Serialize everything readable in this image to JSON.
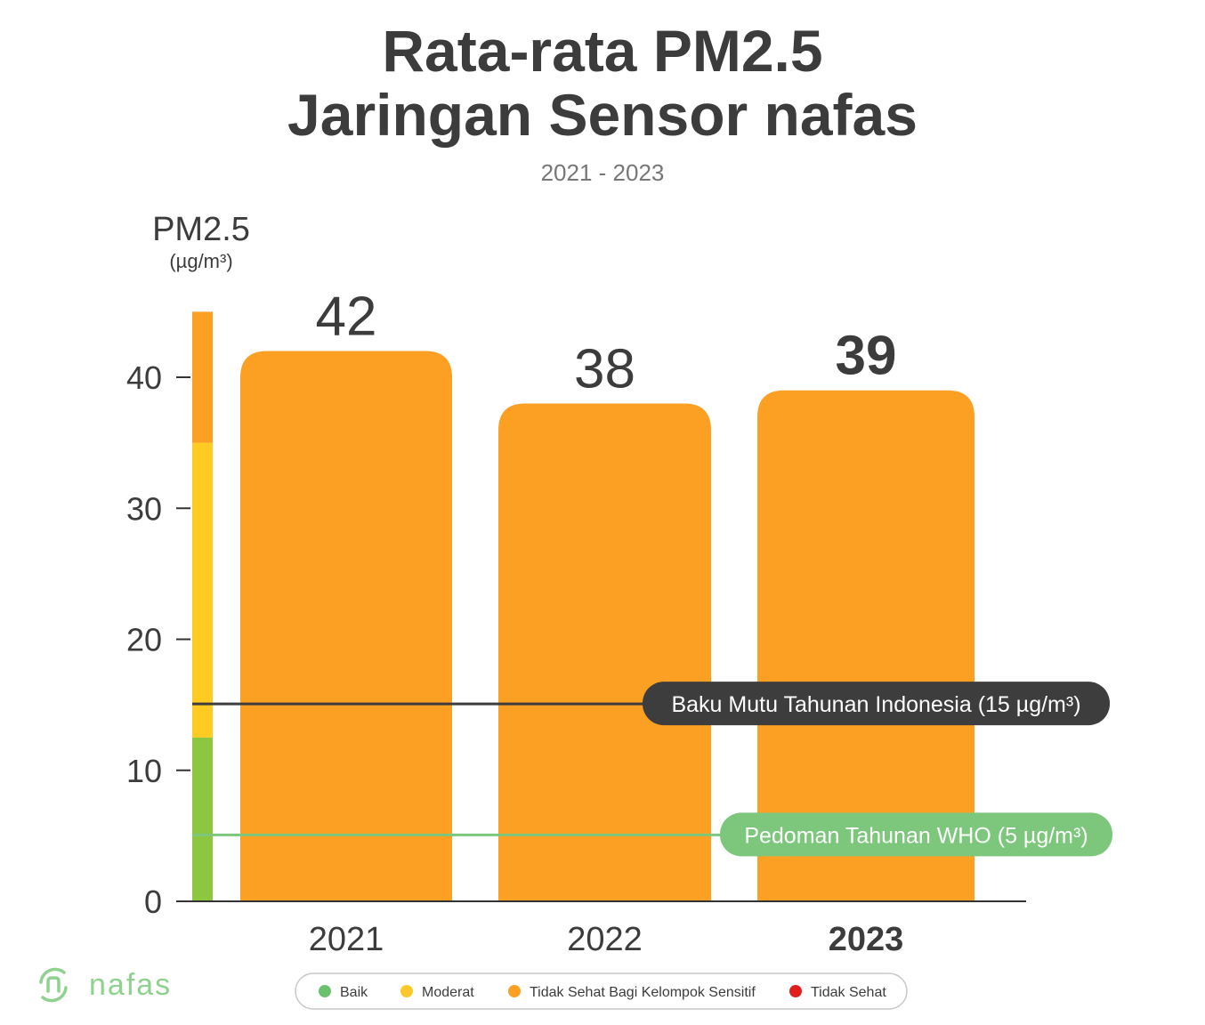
{
  "chart_data": {
    "type": "bar",
    "title_line1": "Rata-rata PM2.5",
    "title_line2": "Jaringan Sensor nafas",
    "subtitle": "2021 - 2023",
    "ylabel": "PM2.5",
    "yunit": "(µg/m³)",
    "ylim": [
      0,
      45
    ],
    "yticks": [
      0,
      10,
      20,
      30,
      40
    ],
    "categories": [
      "2021",
      "2022",
      "2023"
    ],
    "values": [
      42,
      38,
      39
    ],
    "value_labels": [
      "42",
      "38",
      "39"
    ],
    "highlight_category": "2023",
    "bar_color": "#fca024",
    "scale_bands": [
      {
        "from": 0,
        "to": 12.5,
        "color": "#8dc63f"
      },
      {
        "from": 12.5,
        "to": 35,
        "color": "#fecb22"
      },
      {
        "from": 35,
        "to": 45,
        "color": "#fca024"
      }
    ],
    "reference_lines": [
      {
        "value": 15,
        "label": "Baku Mutu Tahunan Indonesia (15 µg/m³)",
        "color": "#3d3d3d"
      },
      {
        "value": 5,
        "label": "Pedoman Tahunan WHO (5 µg/m³)",
        "color": "#7cc77c"
      }
    ],
    "legend": [
      {
        "label": "Baik",
        "color": "#6cc26c"
      },
      {
        "label": "Moderat",
        "color": "#fcc82c"
      },
      {
        "label": "Tidak Sehat Bagi Kelompok Sensitif",
        "color": "#fca024"
      },
      {
        "label": "Tidak Sehat",
        "color": "#e01e1e"
      }
    ],
    "grid": false,
    "legend_placement": "bottom"
  },
  "brand": {
    "logo_text": "nafas",
    "logo_color": "#8fd18f"
  }
}
